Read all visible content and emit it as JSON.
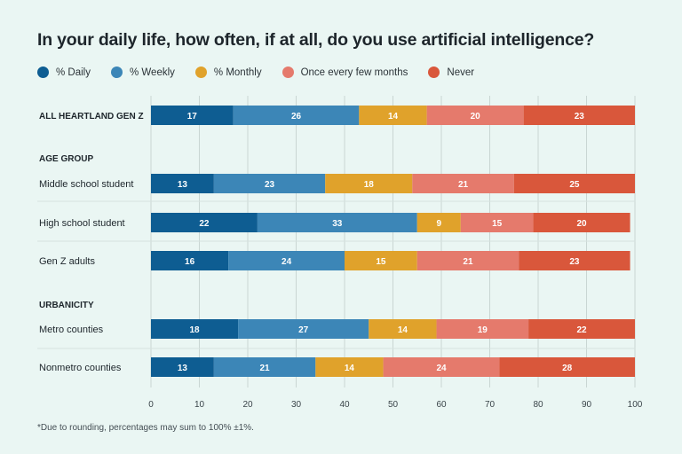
{
  "chart_data": {
    "type": "bar",
    "orientation": "horizontal",
    "stacked": true,
    "title": "In your daily life, how often, if at all, do you use artificial intelligence?",
    "footnote": "*Due to rounding, percentages may sum to 100% ±1%.",
    "legend_position": "top-left",
    "xlim": [
      0,
      100
    ],
    "xticks": [
      0,
      10,
      20,
      30,
      40,
      50,
      60,
      70,
      80,
      90,
      100
    ],
    "grid": "vertical",
    "series": [
      {
        "name": "% Daily",
        "color": "#0e5d92"
      },
      {
        "name": "% Weekly",
        "color": "#3c86b7"
      },
      {
        "name": "% Monthly",
        "color": "#e0a22b"
      },
      {
        "name": "Once every few months",
        "color": "#e57a6c"
      },
      {
        "name": "Never",
        "color": "#d9573b"
      }
    ],
    "groups": [
      {
        "heading": "",
        "categories": [
          {
            "label": "ALL HEARTLAND GEN Z",
            "bold": true,
            "values": [
              17,
              26,
              14,
              20,
              23
            ]
          }
        ]
      },
      {
        "heading": "AGE GROUP",
        "categories": [
          {
            "label": "Middle school student",
            "values": [
              13,
              23,
              18,
              21,
              25
            ]
          },
          {
            "label": "High school student",
            "values": [
              22,
              33,
              9,
              15,
              20
            ]
          },
          {
            "label": "Gen Z adults",
            "values": [
              16,
              24,
              15,
              21,
              23
            ]
          }
        ]
      },
      {
        "heading": "URBANICITY",
        "categories": [
          {
            "label": "Metro counties",
            "values": [
              18,
              27,
              14,
              19,
              22
            ]
          },
          {
            "label": "Nonmetro counties",
            "values": [
              13,
              21,
              14,
              24,
              28
            ]
          }
        ]
      }
    ]
  }
}
